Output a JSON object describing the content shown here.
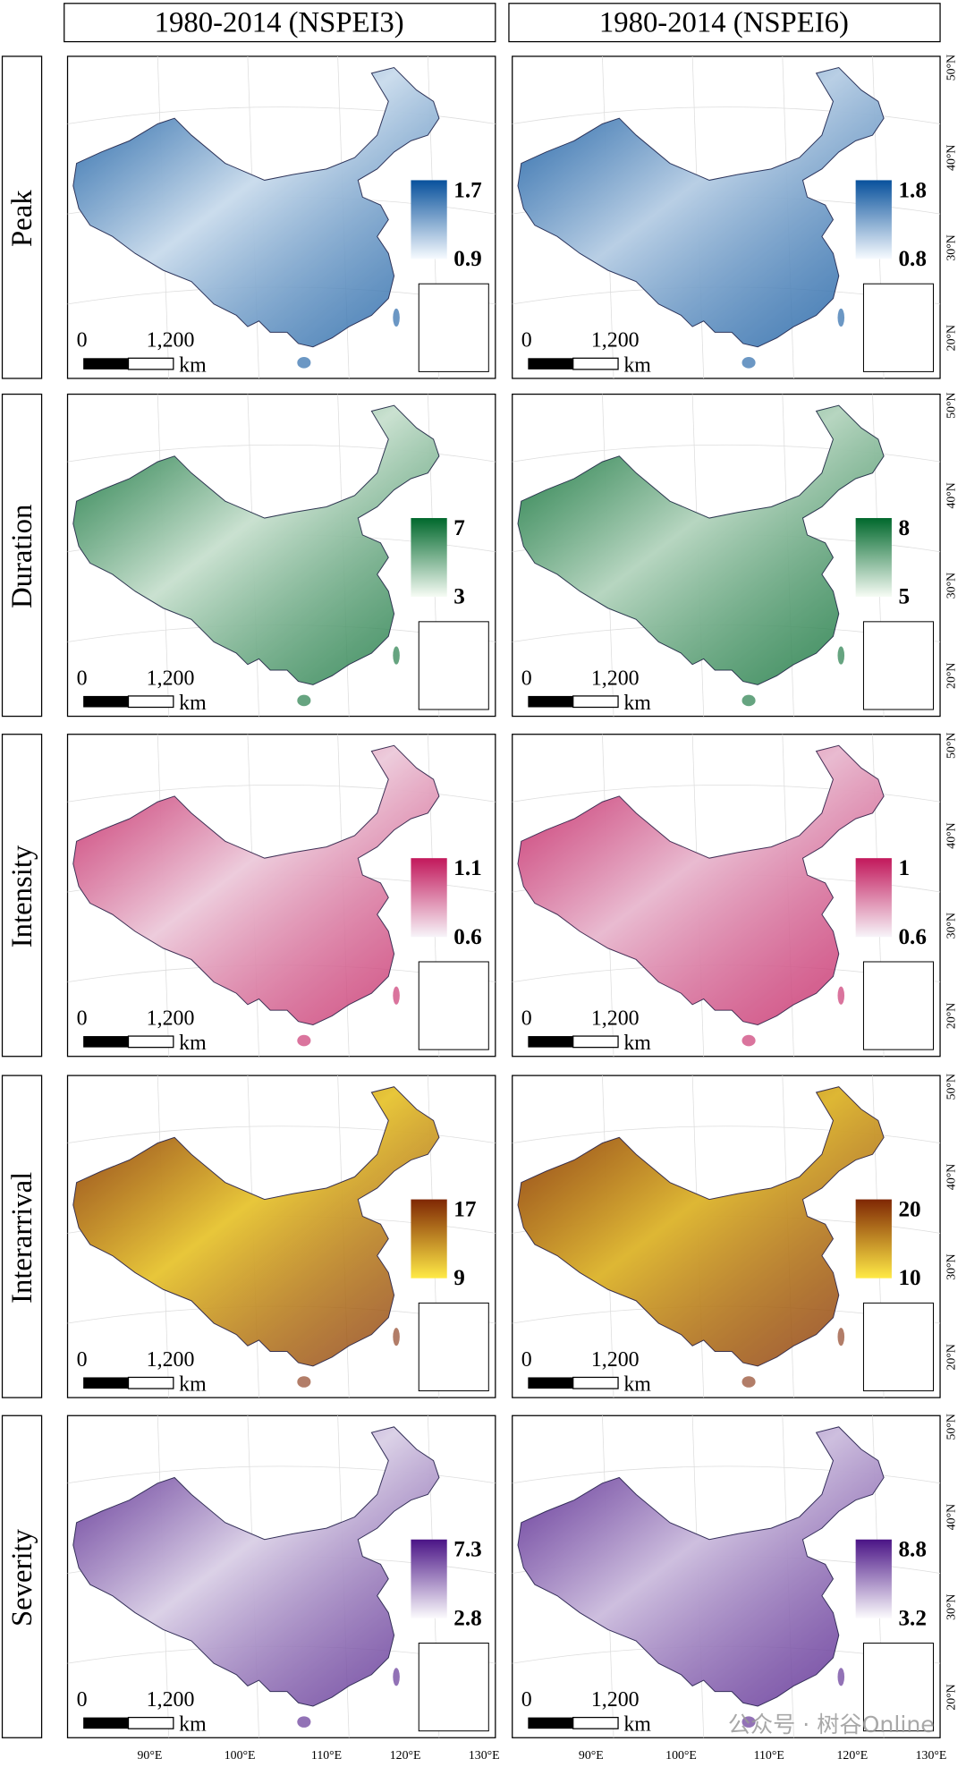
{
  "columns": [
    "1980-2014 (NSPEI3)",
    "1980-2014 (NSPEI6)"
  ],
  "rows": [
    {
      "label": "Peak",
      "colors": [
        "#f7fbff",
        "#08519c"
      ],
      "legends": [
        {
          "max": 1.7,
          "min": 0.9
        },
        {
          "max": 1.8,
          "min": 0.8
        }
      ]
    },
    {
      "label": "Duration",
      "colors": [
        "#f7fcf5",
        "#00682c"
      ],
      "legends": [
        {
          "max": 7,
          "min": 3
        },
        {
          "max": 8,
          "min": 5
        }
      ]
    },
    {
      "label": "Intensity",
      "colors": [
        "#f7f4f9",
        "#c2185b"
      ],
      "legends": [
        {
          "max": 1.1,
          "min": 0.6
        },
        {
          "max": 1,
          "min": 0.6
        }
      ]
    },
    {
      "label": "Interarrival",
      "colors": [
        "#ffea46",
        "#7f2704"
      ],
      "legends": [
        {
          "max": 17,
          "min": 9
        },
        {
          "max": 20,
          "min": 10
        }
      ]
    },
    {
      "label": "Severity",
      "colors": [
        "#fcfbfd",
        "#4a1486"
      ],
      "legends": [
        {
          "max": 7.3,
          "min": 2.8
        },
        {
          "max": 8.8,
          "min": 3.2
        }
      ]
    }
  ],
  "scale_bar": {
    "zero": "0",
    "distance": "1,200",
    "unit": "km"
  },
  "latitudes": [
    "50°N",
    "40°N",
    "30°N",
    "20°N"
  ],
  "longitudes": [
    "90°E",
    "100°E",
    "110°E",
    "120°E",
    "130°E"
  ],
  "watermark": "公众号 · 树谷Online"
}
